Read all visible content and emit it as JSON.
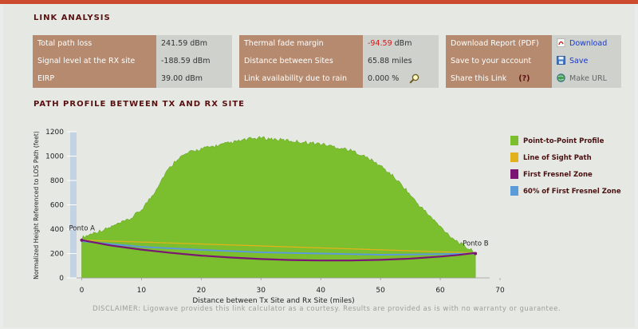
{
  "link_analysis": {
    "title": "LINK ANALYSIS",
    "group1": [
      {
        "label": "Total path loss",
        "value": "241.59 dBm"
      },
      {
        "label": "Signal level at the RX site",
        "value": "-188.59 dBm"
      },
      {
        "label": "EIRP",
        "value": "39.00 dBm"
      }
    ],
    "group2": [
      {
        "label": "Thermal fade margin",
        "value_number": "-94.59",
        "value_unit": " dBm"
      },
      {
        "label": "Distance between Sites",
        "value": "65.88 miles"
      },
      {
        "label": "Link availability due to rain",
        "value": "0.000 %"
      }
    ],
    "group3": [
      {
        "label": "Download Report (PDF)",
        "action": "Download",
        "icon": "pdf-icon"
      },
      {
        "label": "Save to your account",
        "action": "Save",
        "icon": "save-icon"
      },
      {
        "label": "Share this Link",
        "help": "(?)",
        "action": "Make URL",
        "icon": "globe-icon"
      }
    ]
  },
  "profile": {
    "title": "PATH PROFILE BETWEEN TX AND RX SITE"
  },
  "disclaimer": "DISCLAIMER: Ligowave provides this link calculator as a courtesy.  Results are provided as is with no warranty or guarantee.",
  "colors": {
    "accent": "#cc4a2e",
    "label_bg": "#b58a6e",
    "terrain": "#7cbf2e",
    "los": "#e3b21a",
    "fresnel": "#7a1674",
    "fresnel60": "#5b9bd9"
  },
  "chart_data": {
    "type": "area",
    "xlabel": "Distance between Tx Site and Rx Site (miles)",
    "ylabel": "Normalized Height Referenced to LOS Path (feet)",
    "xlim": [
      -3,
      70
    ],
    "ylim": [
      0,
      1200
    ],
    "xticks": [
      0,
      10,
      20,
      30,
      40,
      50,
      60,
      70
    ],
    "yticks": [
      0,
      200,
      400,
      600,
      800,
      1000,
      1200
    ],
    "grid": false,
    "legend_position": "right",
    "site_a": {
      "label": "Ponto A",
      "x": 0,
      "y": 310
    },
    "site_b": {
      "label": "Ponto B",
      "x": 65.88,
      "y": 200
    },
    "series": [
      {
        "name": "Point-to-Point Profile",
        "kind": "area",
        "x": [
          0,
          2,
          4,
          6,
          8,
          10,
          12,
          14,
          16,
          18,
          20,
          22,
          24,
          26,
          28,
          30,
          32,
          34,
          36,
          38,
          40,
          42,
          44,
          46,
          48,
          50,
          52,
          54,
          56,
          58,
          60,
          62,
          64,
          65.88
        ],
        "y": [
          330,
          370,
          400,
          440,
          480,
          560,
          690,
          860,
          980,
          1030,
          1060,
          1080,
          1100,
          1120,
          1140,
          1150,
          1140,
          1130,
          1120,
          1110,
          1100,
          1080,
          1060,
          1030,
          980,
          920,
          840,
          740,
          620,
          520,
          420,
          330,
          260,
          210
        ]
      },
      {
        "name": "Line of Sight Path",
        "kind": "line",
        "x": [
          0,
          65.88
        ],
        "y": [
          310,
          205
        ]
      },
      {
        "name": "First Fresnel Zone",
        "kind": "line",
        "x": [
          0,
          5,
          10,
          15,
          20,
          25,
          30,
          35,
          40,
          45,
          50,
          55,
          60,
          63,
          65.88
        ],
        "y": [
          310,
          265,
          232,
          205,
          183,
          167,
          155,
          147,
          143,
          143,
          148,
          158,
          175,
          188,
          205
        ]
      },
      {
        "name": "60% of First Fresnel Zone",
        "kind": "line",
        "x": [
          0,
          10,
          20,
          30,
          40,
          50,
          60,
          65.88
        ],
        "y": [
          300,
          255,
          230,
          210,
          200,
          190,
          195,
          200
        ]
      }
    ]
  }
}
